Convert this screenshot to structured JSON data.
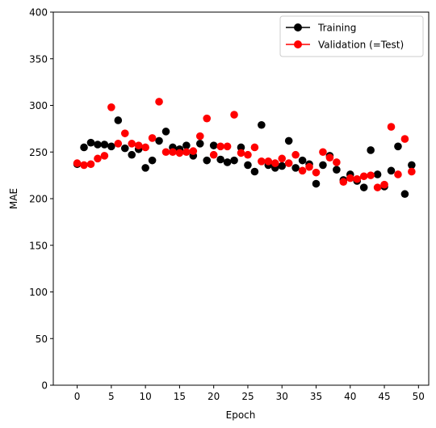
{
  "chart_data": {
    "type": "scatter",
    "xlabel": "Epoch",
    "ylabel": "MAE",
    "xlim": [
      -3.5,
      51.5
    ],
    "ylim": [
      0,
      400
    ],
    "xticks": [
      0,
      5,
      10,
      15,
      20,
      25,
      30,
      35,
      40,
      45,
      50
    ],
    "yticks": [
      0,
      50,
      100,
      150,
      200,
      250,
      300,
      350,
      400
    ],
    "grid": false,
    "legend": "top-right",
    "series": [
      {
        "name": "Training",
        "color": "#000000",
        "marker": "circle",
        "x": [
          0,
          1,
          2,
          3,
          4,
          5,
          6,
          7,
          8,
          9,
          10,
          11,
          12,
          13,
          14,
          15,
          16,
          17,
          18,
          19,
          20,
          21,
          22,
          23,
          24,
          25,
          26,
          27,
          28,
          29,
          30,
          31,
          32,
          33,
          34,
          35,
          36,
          37,
          38,
          39,
          40,
          41,
          42,
          43,
          44,
          45,
          46,
          47,
          48,
          49
        ],
        "y": [
          237,
          255,
          260,
          258,
          258,
          256,
          284,
          254,
          247,
          253,
          233,
          241,
          262,
          272,
          255,
          253,
          257,
          246,
          259,
          241,
          257,
          242,
          239,
          241,
          255,
          236,
          229,
          279,
          236,
          233,
          235,
          262,
          233,
          241,
          237,
          216,
          236,
          246,
          231,
          220,
          226,
          219,
          212,
          252,
          226,
          213,
          230,
          256,
          205,
          236
        ]
      },
      {
        "name": "Validation (=Test)",
        "color": "#ff0000",
        "marker": "circle",
        "x": [
          0,
          1,
          2,
          3,
          4,
          5,
          6,
          7,
          8,
          9,
          10,
          11,
          12,
          13,
          14,
          15,
          16,
          17,
          18,
          19,
          20,
          21,
          22,
          23,
          24,
          25,
          26,
          27,
          28,
          29,
          30,
          31,
          32,
          33,
          34,
          35,
          36,
          37,
          38,
          39,
          40,
          41,
          42,
          43,
          44,
          45,
          46,
          47,
          48,
          49
        ],
        "y": [
          238,
          236,
          237,
          243,
          246,
          298,
          259,
          270,
          259,
          257,
          255,
          265,
          304,
          250,
          250,
          249,
          250,
          251,
          267,
          286,
          247,
          256,
          256,
          290,
          249,
          247,
          255,
          240,
          240,
          238,
          243,
          238,
          247,
          230,
          234,
          228,
          250,
          244,
          239,
          218,
          222,
          221,
          224,
          225,
          212,
          215,
          277,
          226,
          264,
          229
        ]
      }
    ]
  }
}
